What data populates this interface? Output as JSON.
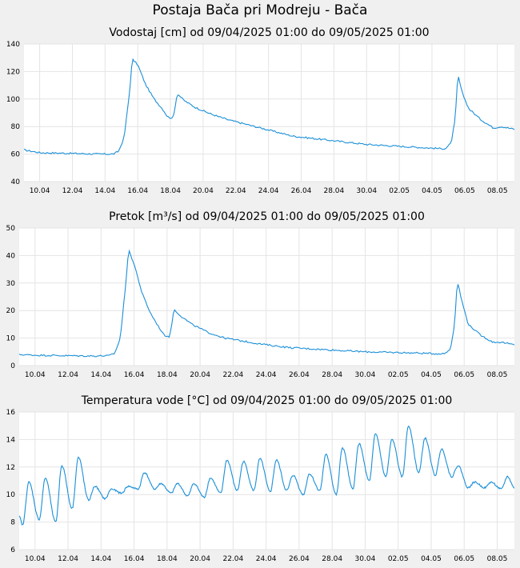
{
  "page_title": "Postaja Bača pri Modreju - Bača",
  "colors": {
    "series": "#1a8fd8",
    "plot_bg": "#ffffff",
    "page_bg": "#f0f0f0",
    "grid": "#e4e4e4"
  },
  "chart_data": [
    {
      "type": "line",
      "title": "Vodostaj [cm] od 09/04/2025 01:00 do 09/05/2025 01:00",
      "xlabel": "",
      "ylabel": "",
      "xlim": [
        "2025-04-09 01:00",
        "2025-05-09 01:00"
      ],
      "ylim": [
        40,
        140
      ],
      "yticks": [
        "140",
        "120",
        "100",
        "80",
        "60",
        "40"
      ],
      "xticks": [
        "10.04",
        "12.04",
        "14.04",
        "16.04",
        "18.04",
        "20.04",
        "22.04",
        "24.04",
        "26.04",
        "28.04",
        "30.04",
        "02.05",
        "04.05",
        "06.05",
        "08.05"
      ],
      "grid": true,
      "series": [
        {
          "x": [
            "2025-04-09 01:00",
            "2025-04-10 00:00",
            "2025-04-12 00:00",
            "2025-04-13 12:00",
            "2025-04-14 12:00",
            "2025-04-14 20:00",
            "2025-04-15 04:00",
            "2025-04-15 12:00",
            "2025-04-15 16:00",
            "2025-04-16 00:00",
            "2025-04-16 12:00",
            "2025-04-17 00:00",
            "2025-04-17 12:00",
            "2025-04-17 20:00",
            "2025-04-18 04:00",
            "2025-04-18 10:00",
            "2025-04-18 20:00",
            "2025-04-19 12:00",
            "2025-04-20 12:00",
            "2025-04-21 12:00",
            "2025-04-22 12:00",
            "2025-04-23 12:00",
            "2025-04-24 12:00",
            "2025-04-25 12:00",
            "2025-04-27 00:00",
            "2025-04-28 12:00",
            "2025-04-30 00:00",
            "2025-05-01 12:00",
            "2025-05-03 00:00",
            "2025-05-04 12:00",
            "2025-05-04 20:00",
            "2025-05-05 04:00",
            "2025-05-05 10:00",
            "2025-05-05 14:00",
            "2025-05-05 20:00",
            "2025-05-06 06:00",
            "2025-05-07 00:00",
            "2025-05-07 18:00",
            "2025-05-08 06:00",
            "2025-05-09 01:00"
          ],
          "y": [
            63,
            61,
            60.5,
            60,
            60,
            62,
            72,
            105,
            129,
            125,
            110,
            100,
            93,
            87,
            86,
            104,
            99,
            94,
            89,
            85,
            82,
            79,
            76,
            73,
            71,
            69,
            67,
            66,
            65,
            64,
            64,
            68,
            85,
            118,
            105,
            93,
            85,
            79,
            80,
            78
          ]
        }
      ]
    },
    {
      "type": "line",
      "title": "Pretok [m³/s] od 09/04/2025 01:00 do 09/05/2025 01:00",
      "xlabel": "",
      "ylabel": "",
      "xlim": [
        "2025-04-09 01:00",
        "2025-05-09 01:00"
      ],
      "ylim": [
        0,
        50
      ],
      "yticks": [
        "50",
        "40",
        "30",
        "20",
        "10",
        "0"
      ],
      "xticks": [
        "10.04",
        "12.04",
        "14.04",
        "16.04",
        "18.04",
        "20.04",
        "22.04",
        "24.04",
        "26.04",
        "28.04",
        "30.04",
        "02.05",
        "04.05",
        "06.05",
        "08.05"
      ],
      "grid": true,
      "series": [
        {
          "x": [
            "2025-04-09 01:00",
            "2025-04-10 00:00",
            "2025-04-12 00:00",
            "2025-04-13 12:00",
            "2025-04-14 12:00",
            "2025-04-14 20:00",
            "2025-04-15 04:00",
            "2025-04-15 12:00",
            "2025-04-15 16:00",
            "2025-04-16 00:00",
            "2025-04-16 12:00",
            "2025-04-17 00:00",
            "2025-04-17 12:00",
            "2025-04-17 20:00",
            "2025-04-18 04:00",
            "2025-04-18 10:00",
            "2025-04-18 20:00",
            "2025-04-19 12:00",
            "2025-04-20 12:00",
            "2025-04-21 12:00",
            "2025-04-22 12:00",
            "2025-04-23 12:00",
            "2025-04-24 12:00",
            "2025-04-25 12:00",
            "2025-04-27 00:00",
            "2025-04-28 12:00",
            "2025-04-30 00:00",
            "2025-05-01 12:00",
            "2025-05-03 00:00",
            "2025-05-04 12:00",
            "2025-05-04 20:00",
            "2025-05-05 04:00",
            "2025-05-05 10:00",
            "2025-05-05 14:00",
            "2025-05-05 20:00",
            "2025-05-06 06:00",
            "2025-05-07 00:00",
            "2025-05-07 18:00",
            "2025-05-08 06:00",
            "2025-05-09 01:00"
          ],
          "y": [
            4,
            3.8,
            3.6,
            3.5,
            3.6,
            4.5,
            10,
            30,
            42,
            37,
            26,
            19,
            14,
            11,
            10.5,
            20.5,
            18,
            15,
            12,
            10,
            9,
            8,
            7.2,
            6.5,
            6,
            5.5,
            5,
            4.8,
            4.6,
            4.3,
            4.4,
            6,
            15,
            31,
            24,
            15,
            11,
            8.5,
            8.5,
            7.5
          ]
        }
      ]
    },
    {
      "type": "line",
      "title": "Temperatura vode [°C] od 09/04/2025 01:00 do 09/05/2025 01:00",
      "xlabel": "",
      "ylabel": "",
      "xlim": [
        "2025-04-09 01:00",
        "2025-05-09 01:00"
      ],
      "ylim": [
        6,
        16
      ],
      "yticks": [
        "16",
        "14",
        "12",
        "10",
        "8",
        "6"
      ],
      "xticks": [
        "10.04",
        "12.04",
        "14.04",
        "16.04",
        "18.04",
        "20.04",
        "22.04",
        "24.04",
        "26.04",
        "28.04",
        "30.04",
        "02.05",
        "04.05",
        "06.05",
        "08.05"
      ],
      "grid": true,
      "daily_peak_hour": 15,
      "series": [
        {
          "x": [
            "2025-04-09",
            "2025-04-10",
            "2025-04-11",
            "2025-04-12",
            "2025-04-13",
            "2025-04-14",
            "2025-04-15",
            "2025-04-16",
            "2025-04-17",
            "2025-04-18",
            "2025-04-19",
            "2025-04-20",
            "2025-04-21",
            "2025-04-22",
            "2025-04-23",
            "2025-04-24",
            "2025-04-25",
            "2025-04-26",
            "2025-04-27",
            "2025-04-28",
            "2025-04-29",
            "2025-04-30",
            "2025-05-01",
            "2025-05-02",
            "2025-05-03",
            "2025-05-04",
            "2025-05-05",
            "2025-05-06",
            "2025-05-07",
            "2025-05-08"
          ],
          "daily_min": [
            7.8,
            8.2,
            8.0,
            9.0,
            9.6,
            9.7,
            10.1,
            10.4,
            10.4,
            10.1,
            9.9,
            9.8,
            10.1,
            10.3,
            10.3,
            10.2,
            10.3,
            10.0,
            10.3,
            10.0,
            10.4,
            11.0,
            11.3,
            11.3,
            11.6,
            11.4,
            11.3,
            10.5,
            10.5,
            10.4
          ],
          "daily_max": [
            10.9,
            11.2,
            12.1,
            12.7,
            10.6,
            10.4,
            10.6,
            11.6,
            10.8,
            10.8,
            10.8,
            11.2,
            12.5,
            12.4,
            12.6,
            12.5,
            11.4,
            11.5,
            12.9,
            13.4,
            13.7,
            14.4,
            14.0,
            15.0,
            14.1,
            13.3,
            12.1,
            10.9,
            10.9,
            11.3
          ]
        }
      ]
    }
  ]
}
